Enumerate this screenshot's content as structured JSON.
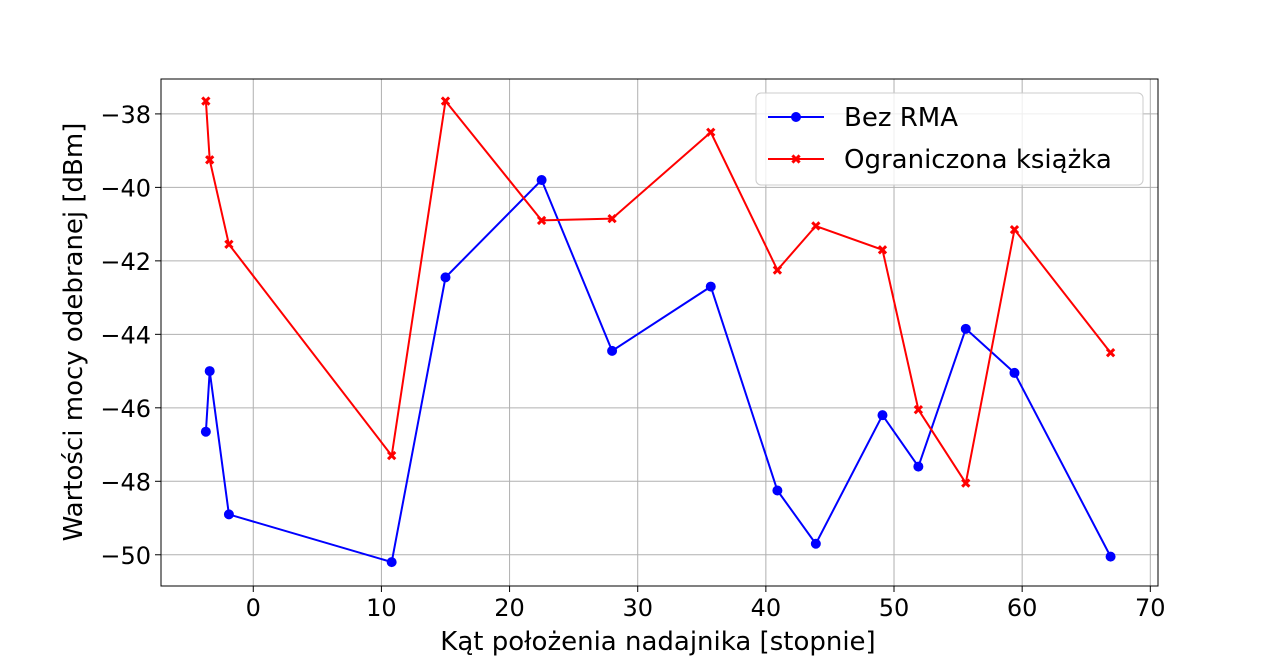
{
  "chart_data": {
    "type": "line",
    "title": "",
    "xlabel": "Kąt położenia nadajnika [stopnie]",
    "ylabel": "Wartości mocy odebranej [dBm]",
    "xlim": [
      -7.2,
      70.6
    ],
    "ylim": [
      -50.85,
      -37.05
    ],
    "xticks": [
      0,
      10,
      20,
      30,
      40,
      50,
      60,
      70
    ],
    "xtick_labels": [
      "0",
      "10",
      "20",
      "30",
      "40",
      "50",
      "60",
      "70"
    ],
    "yticks": [
      -50,
      -48,
      -46,
      -44,
      -42,
      -40,
      -38
    ],
    "ytick_labels": [
      "−50",
      "−48",
      "−46",
      "−44",
      "−42",
      "−40",
      "−38"
    ],
    "grid": true,
    "legend_position": "top-right",
    "series": [
      {
        "name": "Bez RMA",
        "color": "#0000ff",
        "marker": "circle",
        "x": [
          -3.7,
          -3.4,
          -1.9,
          10.8,
          15.0,
          22.5,
          28.0,
          35.7,
          40.9,
          43.9,
          49.1,
          51.9,
          55.6,
          59.4,
          66.9
        ],
        "y": [
          -46.65,
          -45.0,
          -48.9,
          -50.2,
          -42.45,
          -39.8,
          -44.45,
          -42.7,
          -48.25,
          -49.7,
          -46.2,
          -47.6,
          -43.85,
          -45.05,
          -50.05
        ]
      },
      {
        "name": "Ograniczona książka",
        "color": "#ff0000",
        "marker": "x",
        "x": [
          -3.7,
          -3.4,
          -1.9,
          10.8,
          15.0,
          22.5,
          28.0,
          35.7,
          40.9,
          43.9,
          49.1,
          51.9,
          55.6,
          59.4,
          66.9
        ],
        "y": [
          -37.65,
          -39.25,
          -41.55,
          -47.3,
          -37.65,
          -40.9,
          -40.85,
          -38.5,
          -42.25,
          -41.05,
          -41.7,
          -46.05,
          -48.05,
          -41.15,
          -44.5
        ]
      }
    ]
  }
}
